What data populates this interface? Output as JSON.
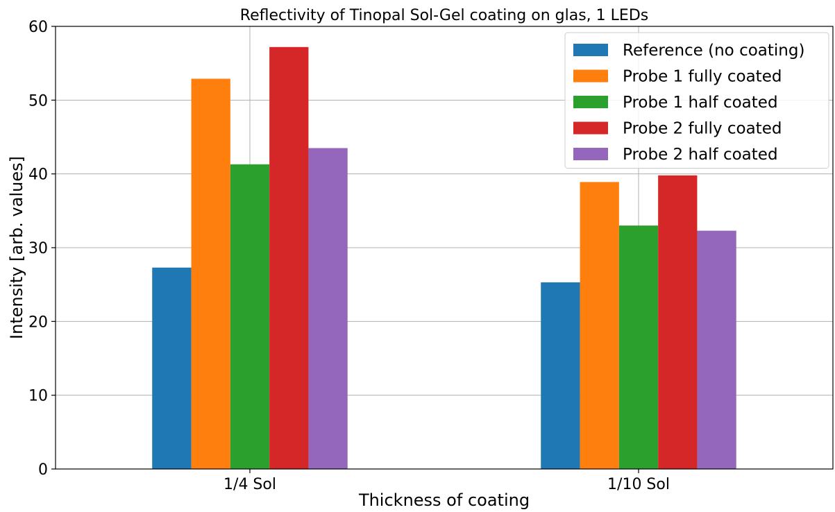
{
  "chart_data": {
    "type": "bar",
    "title": "Reflectivity of Tinopal Sol-Gel coating on glas, 1 LEDs",
    "xlabel": "Thickness of coating",
    "ylabel": "Intensity [arb. values]",
    "categories": [
      "1/4 Sol",
      "1/10 Sol"
    ],
    "ylim": [
      0,
      60
    ],
    "yticks": [
      0,
      10,
      20,
      30,
      40,
      50,
      60
    ],
    "grid": true,
    "legend_position": "top-right",
    "series": [
      {
        "name": "Reference (no coating)",
        "color": "#1f77b4",
        "values": [
          27.3,
          25.3
        ]
      },
      {
        "name": "Probe 1 fully coated",
        "color": "#ff7f0e",
        "values": [
          52.9,
          38.9
        ]
      },
      {
        "name": "Probe 1 half coated",
        "color": "#2ca02c",
        "values": [
          41.3,
          33.0
        ]
      },
      {
        "name": "Probe 2 fully coated",
        "color": "#d62728",
        "values": [
          57.2,
          39.8
        ]
      },
      {
        "name": "Probe 2 half coated",
        "color": "#9467bd",
        "values": [
          43.5,
          32.3
        ]
      }
    ]
  }
}
